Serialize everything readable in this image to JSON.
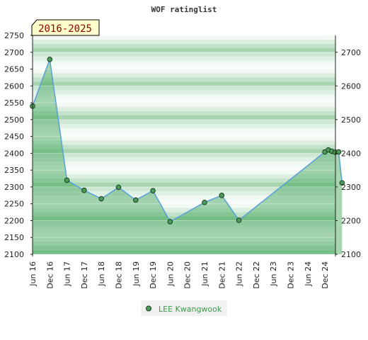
{
  "chart_data": {
    "type": "area",
    "title": "WOF ratinglist",
    "period_badge": "2016-2025",
    "ylim": [
      2100,
      2750
    ],
    "y_ticks_left": [
      2100,
      2150,
      2200,
      2250,
      2300,
      2350,
      2400,
      2450,
      2500,
      2550,
      2600,
      2650,
      2700,
      2750
    ],
    "y_ticks_right": [
      2100,
      2200,
      2300,
      2400,
      2500,
      2600,
      2700
    ],
    "x_tick_labels": [
      "Jun 16",
      "Dec 16",
      "Jun 17",
      "Dec 17",
      "Jun 18",
      "Dec 18",
      "Jun 19",
      "Dec 19",
      "Jun 20",
      "Dec 20",
      "Jun 21",
      "Dec 21",
      "Jun 22",
      "Dec 22",
      "Jun 23",
      "Dec 23",
      "Jun 24",
      "Dec 24"
    ],
    "grid": true,
    "legend_position": "bottom-center",
    "series": [
      {
        "name": "LEE Kwangwook",
        "color": "#58a0d8",
        "x": [
          0.0,
          1.0,
          2.0,
          3.0,
          4.0,
          5.0,
          6.0,
          7.0,
          8.0,
          10.0,
          11.0,
          12.0,
          17.0,
          17.2,
          17.4,
          17.6,
          17.8
        ],
        "values": [
          2540,
          2679,
          2320,
          2290,
          2265,
          2299,
          2261,
          2289,
          2197,
          2254,
          2275,
          2201,
          2404,
          2410,
          2406,
          2403,
          2404
        ]
      }
    ],
    "end_point": {
      "x": 18.0,
      "value": 2312
    }
  }
}
